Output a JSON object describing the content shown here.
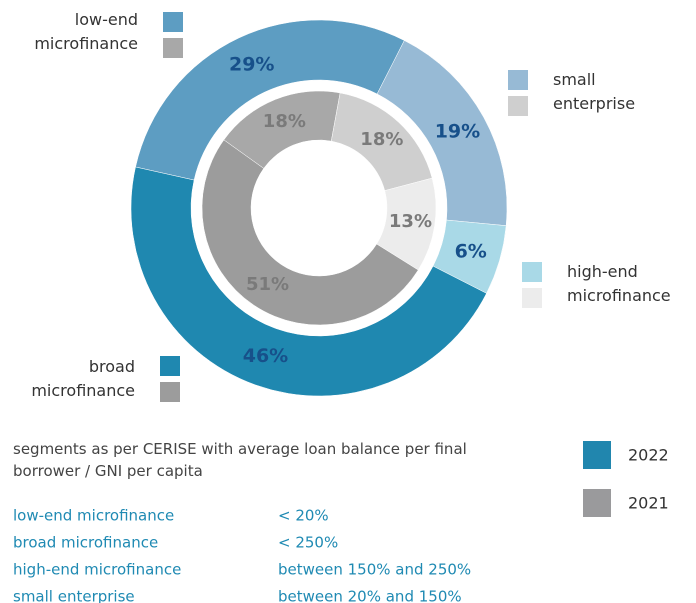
{
  "chart_data": {
    "type": "nested-donut",
    "categories": [
      "low-end microfinance",
      "small enterprise",
      "high-end microfinance",
      "broad microfinance"
    ],
    "series": [
      {
        "name": "2022",
        "color": "#2186ae",
        "colors": [
          "#5d9dc2",
          "#97bad5",
          "#a9d9e7",
          "#1f88b0"
        ],
        "values": [
          29,
          19,
          6,
          46
        ],
        "value_labels": [
          "29%",
          "19%",
          "6%",
          "46%"
        ]
      },
      {
        "name": "2021",
        "color": "#9a9a9c",
        "colors": [
          "#a8a8a8",
          "#cfcfcf",
          "#ececec",
          "#9c9c9c"
        ],
        "values": [
          18,
          18,
          13,
          51
        ],
        "value_labels": [
          "18%",
          "18%",
          "13%",
          "51%"
        ]
      }
    ],
    "note": "segments as per CERISE with average loan balance per final borrower / GNI per capita",
    "segment_definitions": [
      "< 20%",
      "< 250%",
      "between 150% and 250%",
      "between 20% and 150%"
    ]
  }
}
